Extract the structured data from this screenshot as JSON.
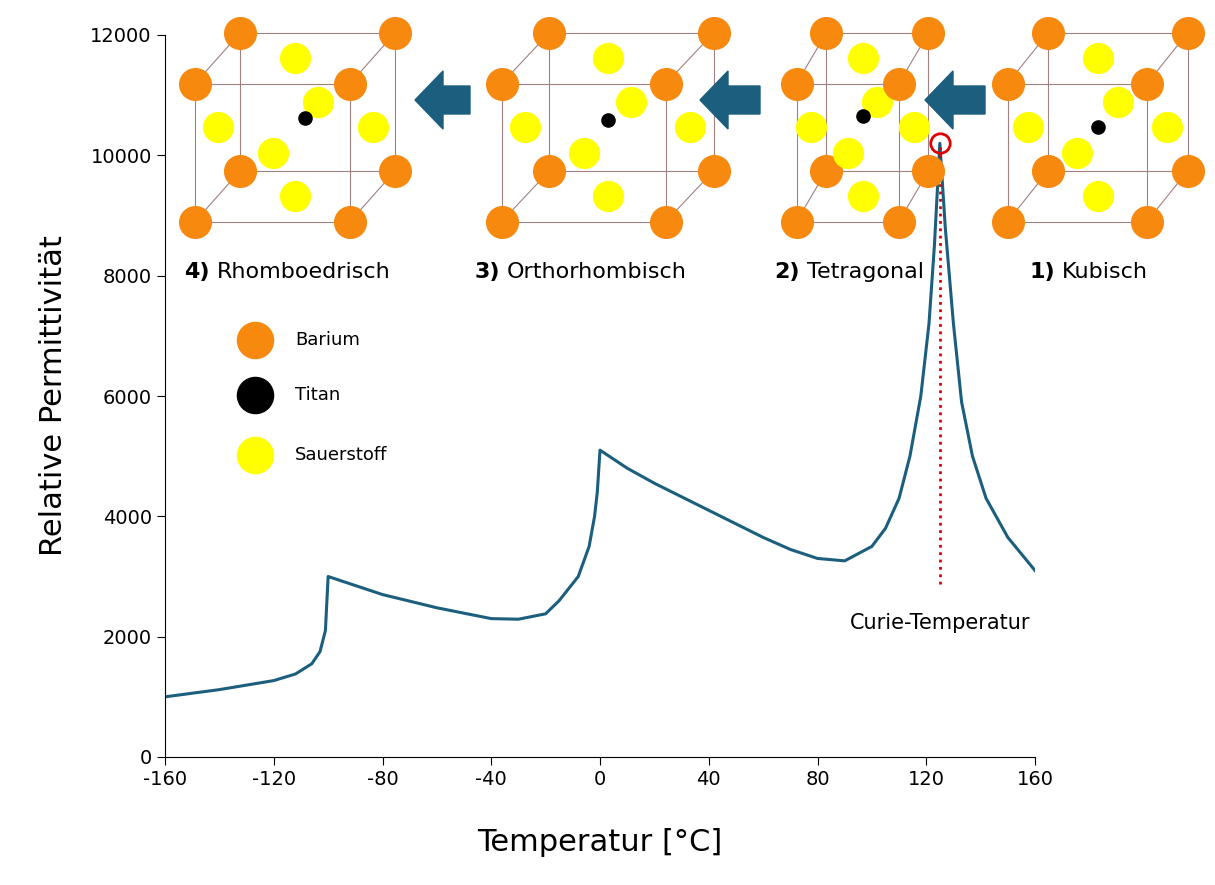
{
  "chart_data": {
    "type": "line",
    "xlabel": "Temperatur [°C]",
    "ylabel": "Relative Permittivität",
    "color": "#1b5e7e",
    "x": [
      -160,
      -140,
      -120,
      -112,
      -106,
      -103,
      -101,
      -100,
      -90,
      -80,
      -60,
      -40,
      -30,
      -20,
      -15,
      -8,
      -4,
      -2,
      -1,
      0,
      10,
      20,
      40,
      60,
      70,
      80,
      90,
      100,
      105,
      110,
      114,
      118,
      121,
      123,
      125,
      127,
      130,
      133,
      137,
      142,
      150,
      160
    ],
    "values": [
      1000,
      1120,
      1270,
      1380,
      1550,
      1750,
      2100,
      3000,
      2850,
      2700,
      2480,
      2300,
      2290,
      2380,
      2600,
      3000,
      3500,
      4000,
      4400,
      5100,
      4800,
      4550,
      4100,
      3650,
      3450,
      3300,
      3260,
      3500,
      3800,
      4300,
      5000,
      6000,
      7200,
      8500,
      10200,
      8800,
      7200,
      5900,
      5000,
      4300,
      3650,
      3100
    ],
    "xlim": [
      -160,
      160
    ],
    "xticks": [
      -160,
      -120,
      -80,
      -40,
      0,
      40,
      80,
      120,
      160
    ],
    "ylim": [
      0,
      12000
    ],
    "yticks": [
      0,
      2000,
      4000,
      6000,
      8000,
      10000,
      12000
    ],
    "grid": false,
    "curie_temperature": {
      "text": "Curie-Temperatur",
      "x": 125,
      "y": 10200,
      "color": "#e00000"
    },
    "phases": [
      {
        "number": "4)",
        "name": "Rhomboedrisch"
      },
      {
        "number": "3)",
        "name": "Orthorhombisch"
      },
      {
        "number": "2)",
        "name": "Tetragonal"
      },
      {
        "number": "1)",
        "name": "Kubisch"
      }
    ],
    "atoms": [
      {
        "name": "Barium",
        "color": "#f7890f"
      },
      {
        "name": "Titan",
        "color": "#000000"
      },
      {
        "name": "Sauerstoff",
        "color": "#ffff00"
      }
    ]
  }
}
